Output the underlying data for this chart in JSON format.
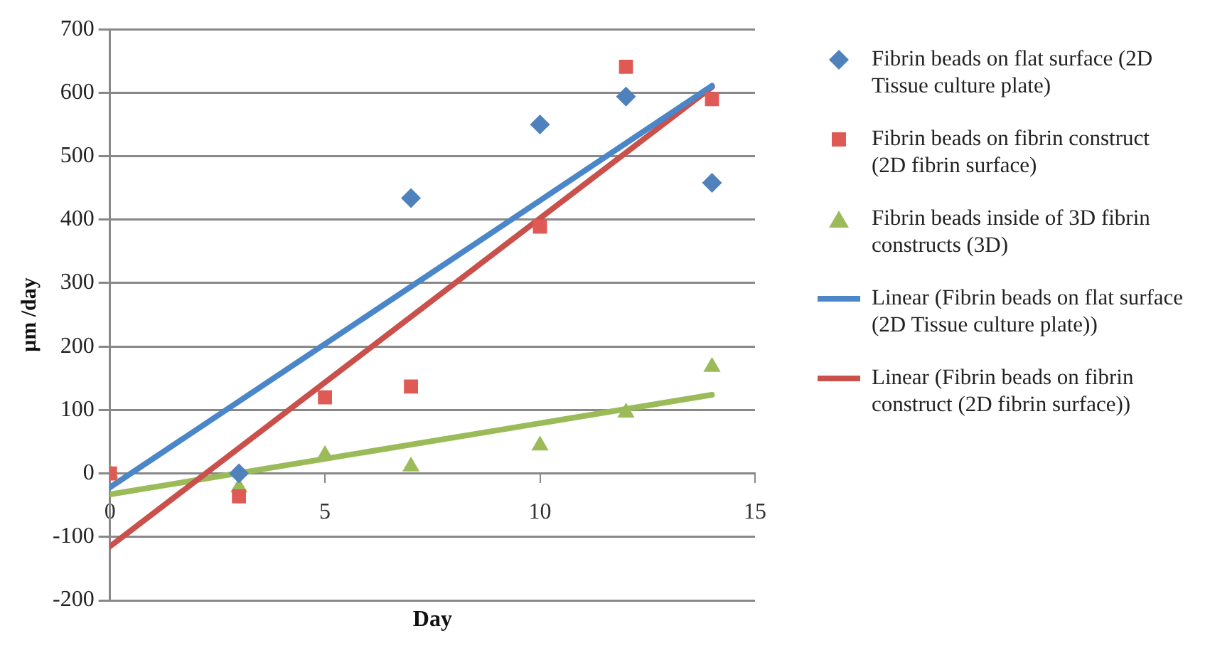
{
  "chart_data": {
    "type": "scatter",
    "xlabel": "Day",
    "ylabel": "μm /day",
    "xlim": [
      0,
      15
    ],
    "xticks": [
      0,
      5,
      10,
      15
    ],
    "ylim": [
      -200,
      700
    ],
    "yticks": [
      -200,
      -100,
      0,
      100,
      200,
      300,
      400,
      500,
      600,
      700
    ],
    "grid": "y",
    "legend": "right",
    "series": [
      {
        "name": "Fibrin beads on flat surface (2D Tissue culture plate)",
        "marker": "diamond",
        "color": "#4f81bd",
        "x": [
          3,
          7,
          10,
          12,
          14
        ],
        "values": [
          0,
          434,
          550,
          594,
          458
        ]
      },
      {
        "name": "Fibrin beads on fibrin construct (2D fibrin surface)",
        "marker": "square",
        "color": "#e05a55",
        "x": [
          0,
          3,
          5,
          7,
          10,
          12,
          14
        ],
        "values": [
          0,
          -36,
          120,
          137,
          389,
          641,
          590
        ]
      },
      {
        "name": "Fibrin beads inside of 3D fibrin constructs (3D)",
        "marker": "triangle",
        "color": "#9bbb59",
        "x": [
          0,
          3,
          5,
          7,
          10,
          12,
          14
        ],
        "values": [
          0,
          -22,
          29,
          11,
          44,
          96,
          168
        ]
      },
      {
        "name": "Linear (Fibrin beads on flat surface (2D Tissue culture plate))",
        "type": "line",
        "marker": "none",
        "color": "#4a86c8",
        "x": [
          0,
          14
        ],
        "values": [
          -22,
          611
        ]
      },
      {
        "name": "Linear (Fibrin beads on fibrin construct (2D fibrin surface))",
        "type": "line",
        "marker": "none",
        "color": "#c9504b",
        "x": [
          0,
          14
        ],
        "values": [
          -115,
          609
        ]
      },
      {
        "type": "line",
        "marker": "none",
        "color": "#9bbb59",
        "x": [
          0,
          14
        ],
        "values": [
          -33,
          124
        ]
      }
    ]
  }
}
